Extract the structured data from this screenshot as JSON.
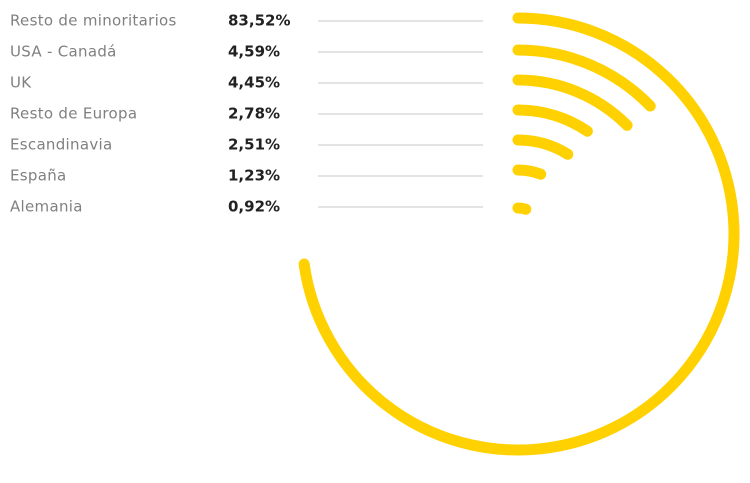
{
  "chart_data": {
    "type": "radial-bar",
    "categories": [
      "Resto de minoritarios",
      "USA - Canadá",
      "UK",
      "Resto de Europa",
      "Escandinavia",
      "España",
      "Alemania"
    ],
    "values": [
      83.52,
      4.59,
      4.45,
      2.78,
      2.51,
      1.23,
      0.92
    ],
    "value_labels": [
      "83,52%",
      "4,59%",
      "4,45%",
      "2,78%",
      "2,51%",
      "1,23%",
      "0,92%"
    ],
    "color": "#ffd100"
  }
}
